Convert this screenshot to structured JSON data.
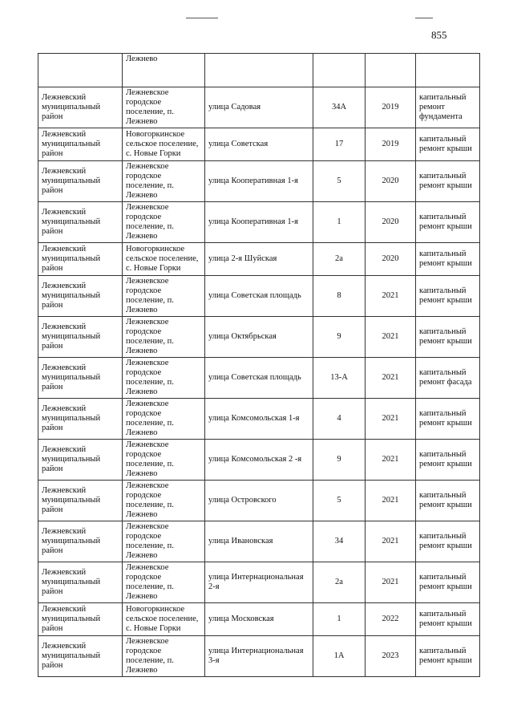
{
  "page_number": "855",
  "first_row": {
    "settlement": "Лежнево"
  },
  "rows": [
    [
      "Лежневский муниципальный район",
      "Лежневское городское поселение, п. Лежнево",
      "улица Садовая",
      "34А",
      "2019",
      "капитальный ремонт фундамента"
    ],
    [
      "Лежневский муниципальный район",
      "Новогоркинское сельское поселение, с. Новые Горки",
      "улица Советская",
      "17",
      "2019",
      "капитальный ремонт крыши"
    ],
    [
      "Лежневский муниципальный район",
      "Лежневское городское поселение, п. Лежнево",
      "улица Кооперативная 1-я",
      "5",
      "2020",
      "капитальный ремонт крыши"
    ],
    [
      "Лежневский муниципальный район",
      "Лежневское городское поселение, п. Лежнево",
      "улица Кооперативная 1-я",
      "1",
      "2020",
      "капитальный ремонт крыши"
    ],
    [
      "Лежневский муниципальный район",
      "Новогоркинское сельское поселение, с. Новые Горки",
      "улица 2-я Шуйская",
      "2а",
      "2020",
      "капитальный ремонт крыши"
    ],
    [
      "Лежневский муниципальный район",
      "Лежневское городское поселение, п. Лежнево",
      "улица Советская площадь",
      "8",
      "2021",
      "капитальный ремонт крыши"
    ],
    [
      "Лежневский муниципальный район",
      "Лежневское городское поселение, п. Лежнево",
      "улица Октябрьская",
      "9",
      "2021",
      "капитальный ремонт крыши"
    ],
    [
      "Лежневский муниципальный район",
      "Лежневское городское поселение, п. Лежнево",
      "улица Советская площадь",
      "13-А",
      "2021",
      "капитальный ремонт фасада"
    ],
    [
      "Лежневский муниципальный район",
      "Лежневское городское поселение, п. Лежнево",
      "улица Комсомольская 1-я",
      "4",
      "2021",
      "капитальный ремонт крыши"
    ],
    [
      "Лежневский муниципальный район",
      "Лежневское городское поселение, п. Лежнево",
      "улица Комсомольская 2 -я",
      "9",
      "2021",
      "капитальный ремонт крыши"
    ],
    [
      "Лежневский муниципальный район",
      "Лежневское городское поселение, п. Лежнево",
      "улица Островского",
      "5",
      "2021",
      "капитальный ремонт крыши"
    ],
    [
      "Лежневский муниципальный район",
      "Лежневское городское поселение, п. Лежнево",
      "улица Ивановская",
      "34",
      "2021",
      "капитальный ремонт крыши"
    ],
    [
      "Лежневский муниципальный район",
      "Лежневское городское поселение, п. Лежнево",
      "улица Интернациональная 2-я",
      "2а",
      "2021",
      "капитальный ремонт крыши"
    ],
    [
      "Лежневский муниципальный район",
      "Новогоркинское сельское поселение, с. Новые Горки",
      "улица Московская",
      "1",
      "2022",
      "капитальный ремонт крыши"
    ],
    [
      "Лежневский муниципальный район",
      "Лежневское городское поселение, п. Лежнево",
      "улица Интернациональная 3-я",
      "1А",
      "2023",
      "капитальный ремонт крыши"
    ]
  ]
}
